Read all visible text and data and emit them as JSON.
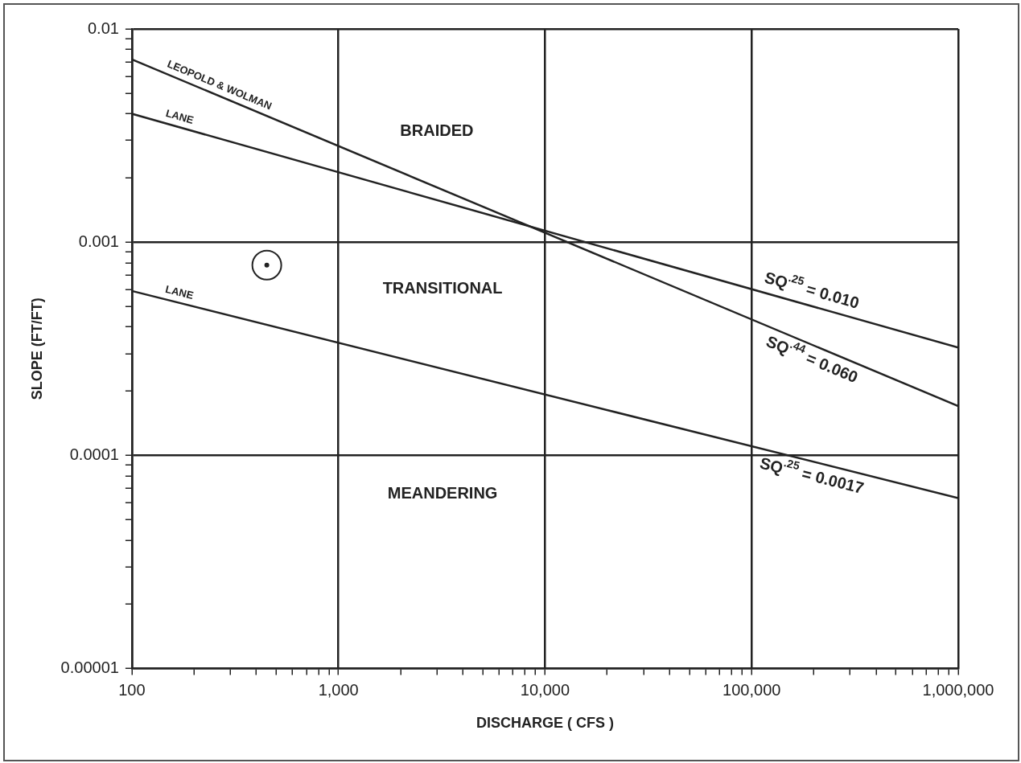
{
  "chart_data": {
    "type": "line",
    "xlabel": "DISCHARGE ( CFS )",
    "ylabel": "SLOPE (FT/FT)",
    "log": "xy",
    "grid": true,
    "legend": false,
    "xlim": [
      100,
      1000000
    ],
    "ylim": [
      1e-05,
      0.01
    ],
    "xticks": [
      100,
      {
        "value": 200,
        "label": null
      },
      {
        "value": 300,
        "label": null
      },
      {
        "value": 400,
        "label": null
      },
      {
        "value": 500,
        "label": null
      },
      {
        "value": 600,
        "label": null
      },
      {
        "value": 700,
        "label": null
      },
      {
        "value": 800,
        "label": null
      },
      {
        "value": 900,
        "label": null
      },
      {
        "value": 1000,
        "label": "1,000"
      },
      {
        "value": 2000,
        "label": null
      },
      {
        "value": 3000,
        "label": null
      },
      {
        "value": 4000,
        "label": null
      },
      {
        "value": 5000,
        "label": null
      },
      {
        "value": 6000,
        "label": null
      },
      {
        "value": 7000,
        "label": null
      },
      {
        "value": 8000,
        "label": null
      },
      {
        "value": 9000,
        "label": null
      },
      {
        "value": 10000,
        "label": "10,000"
      },
      {
        "value": 20000,
        "label": null
      },
      {
        "value": 30000,
        "label": null
      },
      {
        "value": 40000,
        "label": null
      },
      {
        "value": 50000,
        "label": null
      },
      {
        "value": 60000,
        "label": null
      },
      {
        "value": 70000,
        "label": null
      },
      {
        "value": 80000,
        "label": null
      },
      {
        "value": 90000,
        "label": null
      },
      {
        "value": 100000,
        "label": "100,000"
      },
      {
        "value": 200000,
        "label": null
      },
      {
        "value": 300000,
        "label": null
      },
      {
        "value": 400000,
        "label": null
      },
      {
        "value": 500000,
        "label": null
      },
      {
        "value": 600000,
        "label": null
      },
      {
        "value": 700000,
        "label": null
      },
      {
        "value": 800000,
        "label": null
      },
      {
        "value": 900000,
        "label": null
      },
      {
        "value": 1000000,
        "label": "1,000,000"
      }
    ],
    "yticks": [
      {
        "value": 1e-05,
        "label": "0.00001"
      },
      {
        "value": 2e-05,
        "label": null
      },
      {
        "value": 3e-05,
        "label": null
      },
      {
        "value": 4e-05,
        "label": null
      },
      {
        "value": 5e-05,
        "label": null
      },
      {
        "value": 6e-05,
        "label": null
      },
      {
        "value": 7e-05,
        "label": null
      },
      {
        "value": 8e-05,
        "label": null
      },
      {
        "value": 9e-05,
        "label": null
      },
      0.0001,
      {
        "value": 0.0002,
        "label": null
      },
      {
        "value": 0.0003,
        "label": null
      },
      {
        "value": 0.0004,
        "label": null
      },
      {
        "value": 0.0005,
        "label": null
      },
      {
        "value": 0.0006,
        "label": null
      },
      {
        "value": 0.0007,
        "label": null
      },
      {
        "value": 0.0008,
        "label": null
      },
      {
        "value": 0.0009,
        "label": null
      },
      0.001,
      {
        "value": 0.002,
        "label": null
      },
      {
        "value": 0.003,
        "label": null
      },
      {
        "value": 0.004,
        "label": null
      },
      {
        "value": 0.005,
        "label": null
      },
      {
        "value": 0.006,
        "label": null
      },
      {
        "value": 0.007,
        "label": null
      },
      {
        "value": 0.008,
        "label": null
      },
      {
        "value": 0.009,
        "label": null
      },
      0.01
    ],
    "series": [
      {
        "name": "LEOPOLD & WOLMAN",
        "color": "#222222",
        "x": [
          100,
          1000000
        ],
        "values": [
          0.0072,
          0.00017
        ]
      },
      {
        "name": "LANE",
        "color": "#222222",
        "x": [
          100,
          1000000
        ],
        "values": [
          0.004,
          0.00032
        ]
      },
      {
        "name": "LANE",
        "color": "#222222",
        "x": [
          100,
          1000000
        ],
        "values": [
          0.00059,
          6.3e-05
        ]
      },
      {
        "type": "scatter",
        "color": "#222222",
        "marker": "circle",
        "x": [
          450
        ],
        "values": [
          0.00078
        ]
      }
    ],
    "annotations": [
      "BRAIDED",
      "TRANSITIONAL",
      "MEANDERING",
      "SQ$^{.25}$ = 0.010",
      "SQ$^{.44}$ = 0.060",
      "SQ$^{.25}$ = 0.0017"
    ]
  }
}
